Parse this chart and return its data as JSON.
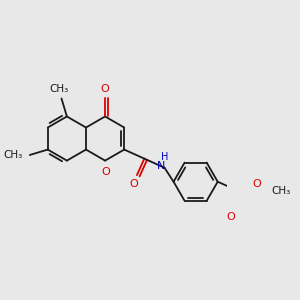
{
  "background_color": "#e8e8e8",
  "bond_color": "#1a1a1a",
  "oxygen_color": "#dd0000",
  "nitrogen_color": "#0000bb",
  "lw": 1.3,
  "figsize": [
    3.0,
    3.0
  ],
  "dpi": 100,
  "xlim": [
    -2.2,
    2.6
  ],
  "ylim": [
    -1.6,
    1.8
  ]
}
